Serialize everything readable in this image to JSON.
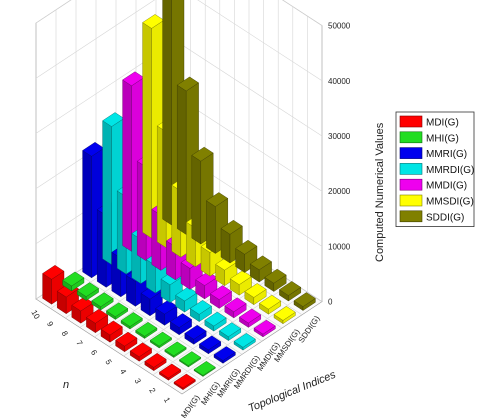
{
  "chart_data": {
    "type": "bar3d",
    "xlabel": "n",
    "ylabel": "Topological Indices",
    "zlabel": "Computed Numerical Values",
    "zlim": [
      0,
      50000
    ],
    "zticks": [
      "0",
      "10000",
      "20000",
      "30000",
      "40000",
      "50000"
    ],
    "categories": [
      "1",
      "2",
      "3",
      "4",
      "5",
      "6",
      "7",
      "8",
      "9",
      "10"
    ],
    "series": [
      {
        "name": "MDI(G)",
        "color": "#ff0000",
        "values": [
          300,
          400,
          600,
          800,
          1000,
          1300,
          1700,
          2200,
          3000,
          4500
        ]
      },
      {
        "name": "MHI(G)",
        "color": "#22dd22",
        "values": [
          200,
          250,
          300,
          350,
          400,
          450,
          500,
          600,
          700,
          900
        ]
      },
      {
        "name": "MMRI(G)",
        "color": "#0000ee",
        "values": [
          500,
          700,
          900,
          1300,
          2000,
          3000,
          4500,
          7000,
          13000,
          22000
        ]
      },
      {
        "name": "MMRDI(G)",
        "color": "#00e5e5",
        "values": [
          500,
          700,
          900,
          1300,
          2000,
          3200,
          5000,
          8000,
          14000,
          25000
        ]
      },
      {
        "name": "MMDI(G)",
        "color": "#ee00ee",
        "values": [
          500,
          800,
          1100,
          1600,
          2400,
          3800,
          6000,
          10000,
          17000,
          30000
        ]
      },
      {
        "name": "MMSDI(G)",
        "color": "#ffff00",
        "values": [
          600,
          900,
          1300,
          1900,
          2800,
          4300,
          7000,
          12000,
          21000,
          38000
        ]
      },
      {
        "name": "SDDI(G)",
        "color": "#808000",
        "values": [
          700,
          1000,
          1500,
          2200,
          3300,
          5200,
          8500,
          15000,
          26000,
          46000
        ]
      }
    ],
    "legend_position": "right",
    "grid": true
  }
}
